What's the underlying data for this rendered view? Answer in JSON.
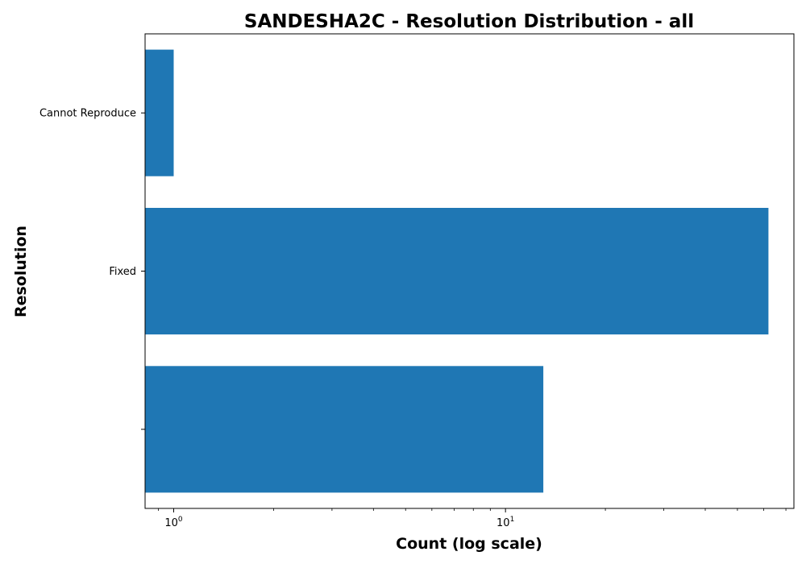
{
  "chart_data": {
    "type": "bar",
    "orientation": "horizontal",
    "title": "SANDESHA2C - Resolution Distribution - all",
    "xlabel": "Count (log scale)",
    "ylabel": "Resolution",
    "x_scale": "log",
    "xlim": [
      0.82,
      74
    ],
    "categories": [
      "Cannot Reproduce",
      "Fixed",
      ""
    ],
    "values": [
      1,
      62,
      13
    ],
    "x_ticks": [
      {
        "value": 1,
        "base": "10",
        "exp": "0"
      },
      {
        "value": 10,
        "base": "10",
        "exp": "1"
      }
    ],
    "grid": false,
    "legend": "none",
    "colors": {
      "bar": "#1f77b4",
      "axis": "#000000"
    }
  }
}
